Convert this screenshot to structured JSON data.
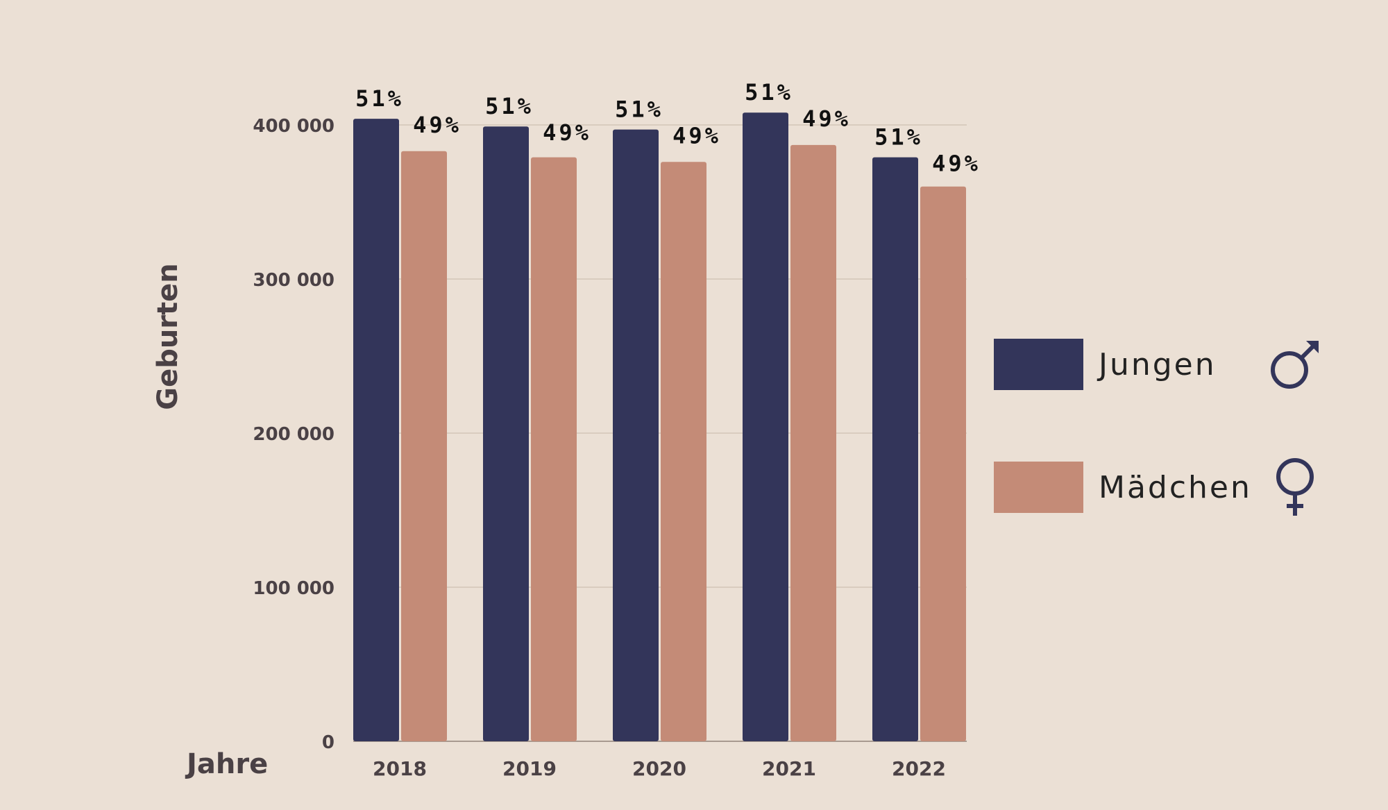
{
  "chart_data": {
    "type": "bar",
    "title": "",
    "xlabel": "Jahre",
    "ylabel": "Geburten",
    "ylim": [
      0,
      400000
    ],
    "yticks": [
      0,
      100000,
      200000,
      300000,
      400000
    ],
    "ytick_labels": [
      "0",
      "100 000",
      "200 000",
      "300 000",
      "400 000"
    ],
    "grid": true,
    "legend_position": "right",
    "categories": [
      "2018",
      "2019",
      "2020",
      "2021",
      "2022"
    ],
    "series": [
      {
        "name": "Jungen",
        "color": "#33355a",
        "icon": "male-symbol-icon",
        "values": [
          404000,
          399000,
          397000,
          408000,
          379000
        ],
        "labels": [
          "51%",
          "51%",
          "51%",
          "51%",
          "51%"
        ]
      },
      {
        "name": "Mädchen",
        "color": "#c48b77",
        "icon": "female-symbol-icon",
        "values": [
          383000,
          379000,
          376000,
          387000,
          360000
        ],
        "labels": [
          "49%",
          "49%",
          "49%",
          "49%",
          "49%"
        ]
      }
    ]
  }
}
